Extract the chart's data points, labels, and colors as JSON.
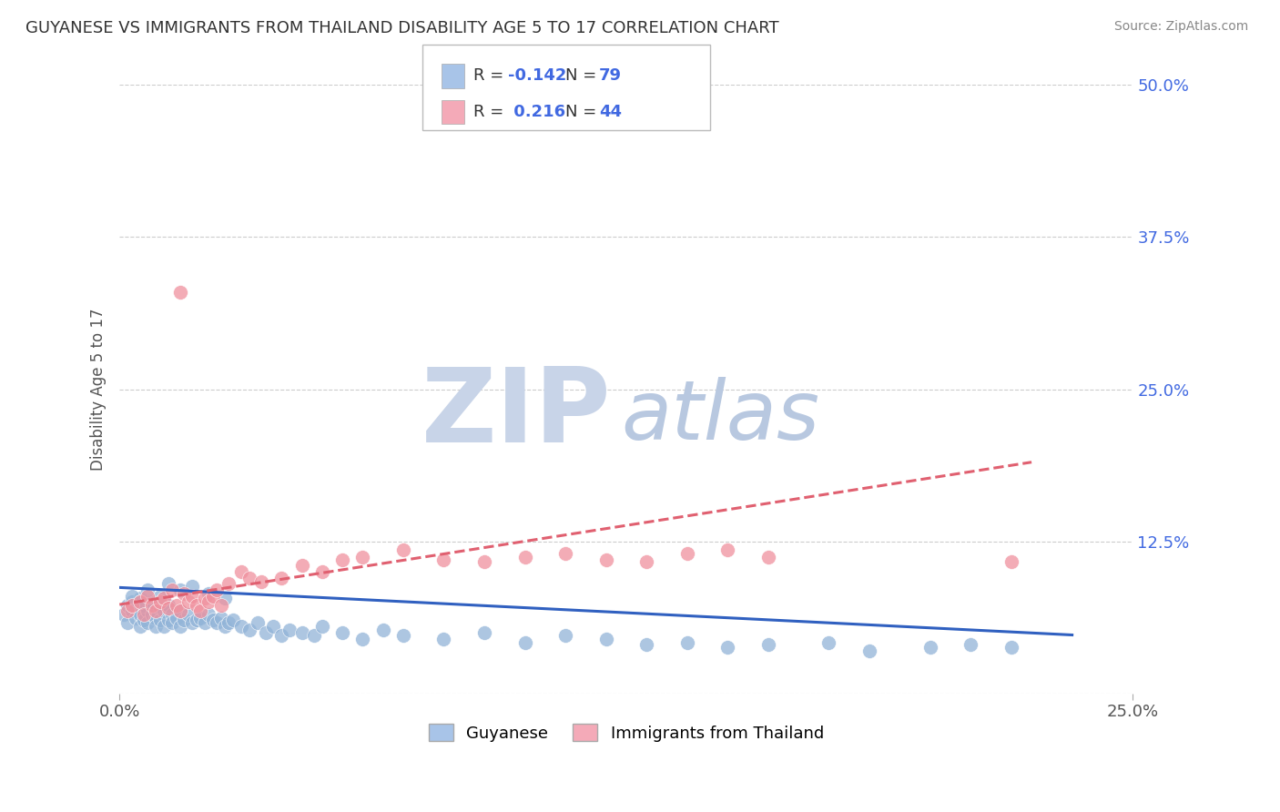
{
  "title": "GUYANESE VS IMMIGRANTS FROM THAILAND DISABILITY AGE 5 TO 17 CORRELATION CHART",
  "source": "Source: ZipAtlas.com",
  "ylabel": "Disability Age 5 to 17",
  "xlim": [
    0.0,
    0.25
  ],
  "ylim": [
    0.0,
    0.5
  ],
  "xtick_vals": [
    0.0,
    0.25
  ],
  "xtick_labels": [
    "0.0%",
    "25.0%"
  ],
  "ytick_vals_right": [
    0.5,
    0.375,
    0.25,
    0.125,
    0.0
  ],
  "ytick_labels_right": [
    "50.0%",
    "37.5%",
    "25.0%",
    "12.5%",
    ""
  ],
  "guyanese_color": "#92b4d8",
  "thailand_color": "#f0919e",
  "trend_guyanese_color": "#3060c0",
  "trend_thailand_color": "#e06070",
  "background_color": "#ffffff",
  "grid_color": "#cccccc",
  "watermark_zip_color": "#c8d4e8",
  "watermark_atlas_color": "#b8c8e0",
  "scatter_guyanese_x": [
    0.001,
    0.002,
    0.002,
    0.003,
    0.003,
    0.004,
    0.004,
    0.005,
    0.005,
    0.005,
    0.006,
    0.006,
    0.007,
    0.007,
    0.008,
    0.008,
    0.009,
    0.009,
    0.01,
    0.01,
    0.011,
    0.011,
    0.012,
    0.012,
    0.013,
    0.013,
    0.014,
    0.015,
    0.015,
    0.016,
    0.017,
    0.018,
    0.019,
    0.02,
    0.021,
    0.022,
    0.023,
    0.024,
    0.025,
    0.026,
    0.027,
    0.028,
    0.03,
    0.032,
    0.034,
    0.036,
    0.038,
    0.04,
    0.042,
    0.045,
    0.048,
    0.05,
    0.055,
    0.06,
    0.065,
    0.07,
    0.08,
    0.09,
    0.1,
    0.11,
    0.12,
    0.13,
    0.14,
    0.15,
    0.16,
    0.175,
    0.185,
    0.2,
    0.21,
    0.22,
    0.003,
    0.005,
    0.007,
    0.01,
    0.012,
    0.015,
    0.018,
    0.022,
    0.026
  ],
  "scatter_guyanese_y": [
    0.065,
    0.072,
    0.058,
    0.068,
    0.075,
    0.07,
    0.062,
    0.078,
    0.065,
    0.055,
    0.072,
    0.06,
    0.068,
    0.058,
    0.065,
    0.075,
    0.062,
    0.055,
    0.07,
    0.06,
    0.068,
    0.055,
    0.072,
    0.06,
    0.065,
    0.058,
    0.062,
    0.068,
    0.055,
    0.06,
    0.065,
    0.058,
    0.06,
    0.062,
    0.058,
    0.065,
    0.06,
    0.058,
    0.062,
    0.055,
    0.058,
    0.06,
    0.055,
    0.052,
    0.058,
    0.05,
    0.055,
    0.048,
    0.052,
    0.05,
    0.048,
    0.055,
    0.05,
    0.045,
    0.052,
    0.048,
    0.045,
    0.05,
    0.042,
    0.048,
    0.045,
    0.04,
    0.042,
    0.038,
    0.04,
    0.042,
    0.035,
    0.038,
    0.04,
    0.038,
    0.08,
    0.075,
    0.085,
    0.08,
    0.09,
    0.085,
    0.088,
    0.082,
    0.078
  ],
  "scatter_thailand_x": [
    0.002,
    0.003,
    0.005,
    0.006,
    0.007,
    0.008,
    0.009,
    0.01,
    0.011,
    0.012,
    0.013,
    0.014,
    0.015,
    0.016,
    0.017,
    0.018,
    0.019,
    0.02,
    0.021,
    0.022,
    0.023,
    0.024,
    0.025,
    0.027,
    0.03,
    0.032,
    0.035,
    0.04,
    0.045,
    0.05,
    0.055,
    0.06,
    0.07,
    0.08,
    0.09,
    0.1,
    0.11,
    0.12,
    0.13,
    0.14,
    0.15,
    0.16,
    0.015,
    0.22
  ],
  "scatter_thailand_y": [
    0.068,
    0.072,
    0.075,
    0.065,
    0.08,
    0.072,
    0.068,
    0.075,
    0.078,
    0.07,
    0.085,
    0.072,
    0.068,
    0.082,
    0.075,
    0.08,
    0.072,
    0.068,
    0.078,
    0.075,
    0.08,
    0.085,
    0.072,
    0.09,
    0.1,
    0.095,
    0.092,
    0.095,
    0.105,
    0.1,
    0.11,
    0.112,
    0.118,
    0.11,
    0.108,
    0.112,
    0.115,
    0.11,
    0.108,
    0.115,
    0.118,
    0.112,
    0.33,
    0.108
  ],
  "trend_guyanese_x0": 0.0,
  "trend_guyanese_x1": 0.235,
  "trend_guyanese_y0": 0.087,
  "trend_guyanese_y1": 0.048,
  "trend_thailand_x0": 0.0,
  "trend_thailand_x1": 0.225,
  "trend_thailand_y0": 0.073,
  "trend_thailand_y1": 0.19,
  "legend_R1": "-0.142",
  "legend_N1": "79",
  "legend_R2": "0.216",
  "legend_N2": "44",
  "legend_color1": "#a8c4e8",
  "legend_color2": "#f4aab8"
}
